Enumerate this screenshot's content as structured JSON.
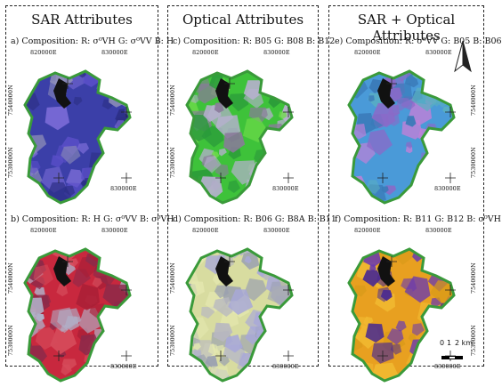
{
  "panels": {
    "sar": {
      "title": "SAR Attributes"
    },
    "optical": {
      "title": "Optical Attributes"
    },
    "combined": {
      "title": "SAR + Optical Attributes"
    }
  },
  "maps": [
    {
      "id": "a",
      "caption": "a) Composition: R: σ⁰VH G: σ⁰VV B: H"
    },
    {
      "id": "b",
      "caption": "b) Composition: R: H G: σ⁰VV B: σ⁰VH"
    },
    {
      "id": "c",
      "caption": "c) Composition: R: B05 G: B08 B: B12"
    },
    {
      "id": "d",
      "caption": "d) Composition: R: B06 G: B8A B: B11"
    },
    {
      "id": "e",
      "caption": "e) Composition: R: σ⁰VV G: B05 B: B06"
    },
    {
      "id": "f",
      "caption": "f) Composition: R: B11 G: B12 B: σ⁰VH"
    }
  ],
  "grid": {
    "easting_1": "820000E",
    "easting_2": "830000E",
    "northing_1": "7540000N",
    "northing_2": "7530000N"
  },
  "north_arrow": {
    "label": ""
  },
  "scale_bar": {
    "labels": [
      "0",
      "1",
      "2 km"
    ]
  },
  "colors": {
    "border": "#3a9a3a",
    "water": "#111111",
    "a": [
      "#3b3fa8",
      "#5a4fc8",
      "#2c2f85",
      "#7a6bd6",
      "#8f8fb8"
    ],
    "b": [
      "#c8283e",
      "#a81f36",
      "#d64a5a",
      "#8a2a4a",
      "#b0b0c8"
    ],
    "c": [
      "#3ec23a",
      "#6fdc4a",
      "#2a9a3a",
      "#8a7a9a",
      "#b8b0d0"
    ],
    "d": [
      "#d8dca0",
      "#b8b8c0",
      "#a8a8d8",
      "#e4e8b0",
      "#9aa0b0"
    ],
    "e": [
      "#4a9ad8",
      "#8a6ac8",
      "#3a7ab8",
      "#c080d8",
      "#5ab0c0"
    ],
    "f": [
      "#e8a020",
      "#6a3ab0",
      "#d89a18",
      "#4a2a90",
      "#f0b830"
    ]
  }
}
